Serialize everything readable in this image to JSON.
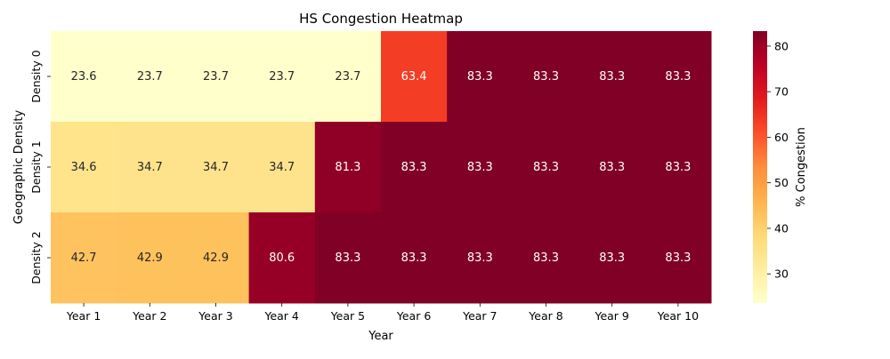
{
  "chart_data": {
    "type": "heatmap",
    "title": "HS Congestion Heatmap",
    "xlabel": "Year",
    "ylabel": "Geographic Density",
    "colorbar_label": "% Congestion",
    "colormap": "YlOrRd",
    "x_categories": [
      "Year 1",
      "Year 2",
      "Year 3",
      "Year 4",
      "Year 5",
      "Year 6",
      "Year 7",
      "Year 8",
      "Year 9",
      "Year 10"
    ],
    "y_categories": [
      "Density 0",
      "Density 1",
      "Density 2"
    ],
    "values": [
      [
        23.6,
        23.7,
        23.7,
        23.7,
        23.7,
        63.4,
        83.3,
        83.3,
        83.3,
        83.3
      ],
      [
        34.6,
        34.7,
        34.7,
        34.7,
        81.3,
        83.3,
        83.3,
        83.3,
        83.3,
        83.3
      ],
      [
        42.7,
        42.9,
        42.9,
        80.6,
        83.3,
        83.3,
        83.3,
        83.3,
        83.3,
        83.3
      ]
    ],
    "value_range": [
      23.6,
      83.3
    ],
    "colorbar_ticks": [
      30,
      40,
      50,
      60,
      70,
      80
    ],
    "cell_labels_decimals": 1
  }
}
